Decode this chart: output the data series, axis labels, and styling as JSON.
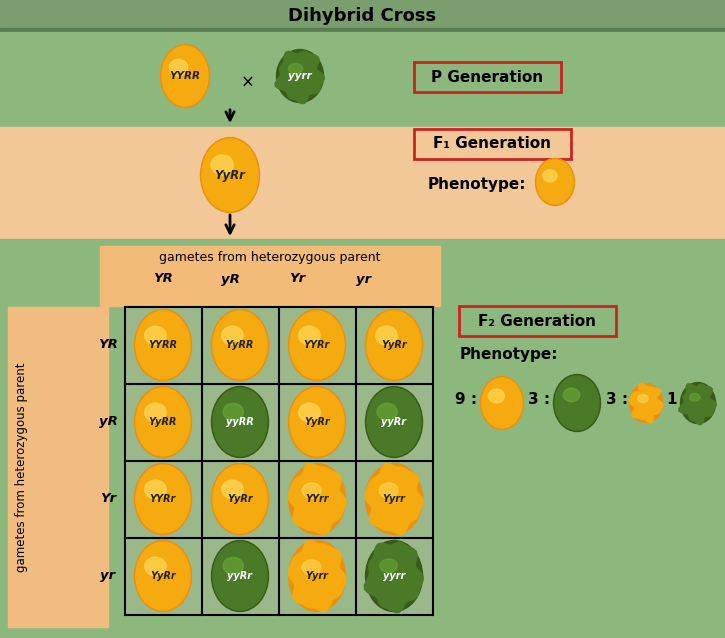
{
  "title": "Dihybrid Cross",
  "bg_title": "#7b9e6e",
  "bg_green": "#8db87d",
  "bg_peach": "#f2c898",
  "bg_peach_dark": "#f0bc80",
  "bg_cell_green": "#a8c090",
  "punnett_cols": [
    "YR",
    "yR",
    "Yr",
    "yr"
  ],
  "punnett_rows": [
    "YR",
    "yR",
    "Yr",
    "yr"
  ],
  "punnett_cells": [
    [
      "YYRR",
      "YyRR",
      "YYRr",
      "YyRr"
    ],
    [
      "YyRR",
      "yyRR",
      "YyRr",
      "yyRr"
    ],
    [
      "YYRr",
      "YyRr",
      "YYrr",
      "Yyrr"
    ],
    [
      "YyRr",
      "yyRr",
      "Yyrr",
      "yyrr"
    ]
  ],
  "cell_colors": [
    [
      "yellow",
      "yellow",
      "yellow",
      "yellow"
    ],
    [
      "yellow",
      "green",
      "yellow",
      "green"
    ],
    [
      "yellow",
      "yellow",
      "yellow_wrinkled",
      "yellow_wrinkled"
    ],
    [
      "yellow",
      "green",
      "yellow_wrinkled",
      "green_wrinkled"
    ]
  ],
  "p_gen_label": "P Generation",
  "f1_gen_label": "F₁ Generation",
  "f2_gen_label": "F₂ Generation",
  "phenotype_label": "Phenotype:",
  "gametes_label": "gametes from heterozygous parent",
  "gametes_side_label": "gametes from heterozygous parent",
  "p_yellow_genotype": "YYRR",
  "p_green_genotype": "yyrr",
  "f1_genotype": "YyRr",
  "ratio_nums": [
    "9 :",
    "3 :",
    "3 :",
    "1"
  ],
  "ratio_styles": [
    "yellow",
    "green",
    "yellow_wrinkled",
    "green_wrinkled"
  ],
  "red_box_color": "#cc2222",
  "yellow_color": "#f5aa10",
  "yellow_hi": "#ffd555",
  "yellow_outer": "#e89010",
  "green_color": "#4a7a28",
  "green_hi": "#6aaa38",
  "green_outer": "#3a5a18",
  "yellow_w_color": "#e8a010",
  "green_w_color": "#4a7828"
}
